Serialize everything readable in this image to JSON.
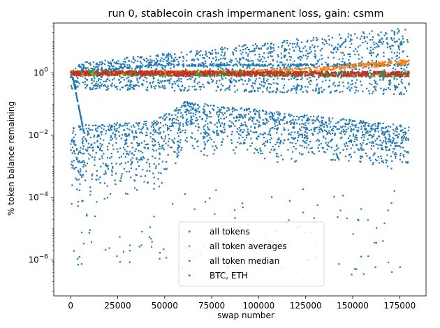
{
  "chart_data": {
    "type": "scatter",
    "title": "run 0, stablecoin crash impermanent loss, gain: csmm",
    "xlabel": "swap number",
    "ylabel": "% token balance remaining",
    "xlim": [
      -9000,
      189000
    ],
    "ylim": [
      7e-08,
      40
    ],
    "yscale": "log",
    "x_ticks": [
      0,
      25000,
      50000,
      75000,
      100000,
      125000,
      150000,
      175000
    ],
    "x_tick_labels": [
      "0",
      "25000",
      "50000",
      "75000",
      "100000",
      "125000",
      "150000",
      "175000"
    ],
    "y_ticks": [
      1e-06,
      0.0001,
      0.01,
      1
    ],
    "y_tick_labels": [
      {
        "base": "10",
        "exp": "−6"
      },
      {
        "base": "10",
        "exp": "−4"
      },
      {
        "base": "10",
        "exp": "−2"
      },
      {
        "base": "10",
        "exp": "0"
      }
    ],
    "legend": {
      "placement": "lower-center",
      "entries": [
        "all tokens",
        "all token averages",
        "all token median",
        "BTC, ETH"
      ]
    },
    "series": [
      {
        "name": "all tokens",
        "color": "#1f77b4",
        "bands": [
          {
            "desc": "upper",
            "x": [
              0,
              180000
            ],
            "y_low": [
              0.3,
              0.2
            ],
            "y_high": [
              2.0,
              30
            ]
          },
          {
            "desc": "lower",
            "x": [
              0,
              45000,
              60000,
              180000
            ],
            "y_low": [
              5e-05,
              0.0001,
              0.002,
              0.0006
            ],
            "y_high": [
              0.02,
              0.03,
              0.12,
              0.02
            ]
          },
          {
            "desc": "step",
            "x": [
              0,
              45000,
              180000
            ],
            "y": [
              1.0,
              1.8,
              1.8
            ]
          }
        ]
      },
      {
        "name": "all token averages",
        "color": "#ff7f0e",
        "x": [
          0,
          90000,
          130000,
          180000
        ],
        "y": [
          1.0,
          1.05,
          1.3,
          2.3
        ]
      },
      {
        "name": "all token median",
        "color": "#2ca02c",
        "x": [
          0,
          90000,
          180000
        ],
        "y": [
          1.0,
          0.95,
          0.9
        ]
      },
      {
        "name": "BTC, ETH",
        "color": "#d62728",
        "x": [
          0,
          180000
        ],
        "y": [
          1.0,
          0.95
        ]
      }
    ]
  }
}
